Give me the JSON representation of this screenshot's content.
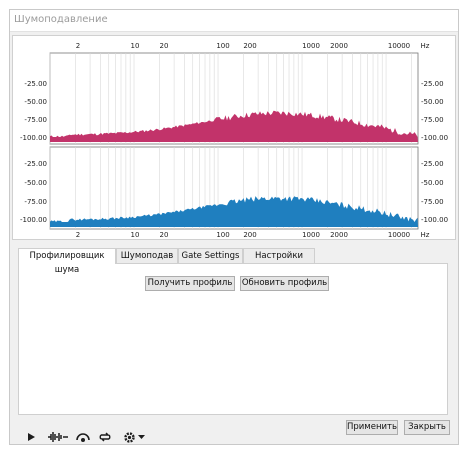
{
  "window": {
    "title": "Шумоподавление"
  },
  "spectrum": {
    "freq_labels_top": [
      "2",
      "10",
      "20",
      "100",
      "200",
      "1000",
      "2000",
      "10000",
      "Hz"
    ],
    "freq_labels_bottom": [
      "2",
      "10",
      "20",
      "100",
      "200",
      "1000",
      "2000",
      "10000",
      "Hz"
    ],
    "db_labels_left_top": [
      "-25.00",
      "-50.00",
      "-75.00",
      "-100.00"
    ],
    "db_labels_right_top": [
      "-25.00",
      "-50.00",
      "-75.00",
      "-100.00"
    ],
    "db_labels_left_bottom": [
      "-25.00",
      "-50.00",
      "-75.00",
      "-100.00"
    ],
    "db_labels_right_bottom": [
      "-25.00",
      "-50.00",
      "-75.00",
      "-100.00"
    ],
    "top_channel_color": "#c2336a",
    "bottom_channel_color": "#1f7fbf"
  },
  "tabs": [
    {
      "label": "Профилировщик шума",
      "active": true
    },
    {
      "label": "Шумоподав",
      "active": false
    },
    {
      "label": "Gate Settings",
      "active": false
    },
    {
      "label": "Настройки окна",
      "active": false
    }
  ],
  "profile_panel": {
    "get_profile_label": "Получить профиль",
    "update_profile_label": "Обновить профиль"
  },
  "toolbar": {
    "icons": [
      "play-icon",
      "waveform-icon",
      "preview-icon",
      "loop-icon",
      "settings-gear-icon",
      "dropdown-arrow-icon"
    ],
    "apply_label": "Применить",
    "close_label": "Закрыть"
  }
}
